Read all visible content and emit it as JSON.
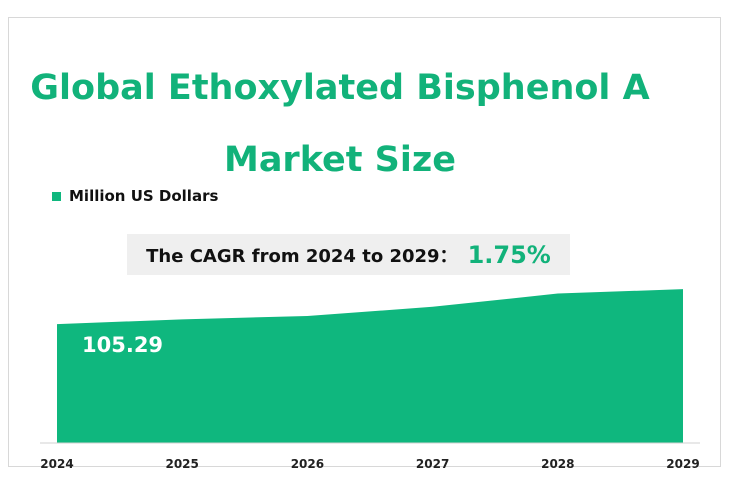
{
  "chart_data": {
    "type": "area",
    "title": "Global Ethoxylated Bisphenol A Market Size",
    "categories": [
      "2024",
      "2025",
      "2026",
      "2027",
      "2028",
      "2029"
    ],
    "series": [
      {
        "name": "Million US Dollars",
        "color": "#0fb77e",
        "values": [
          105.29,
          106.6,
          107.5,
          110.0,
          113.6,
          114.8
        ]
      }
    ],
    "ylim": [
      73,
      120
    ],
    "annotations": [
      "The CAGR from 2024 to 2029：",
      "1.75%"
    ]
  }
}
